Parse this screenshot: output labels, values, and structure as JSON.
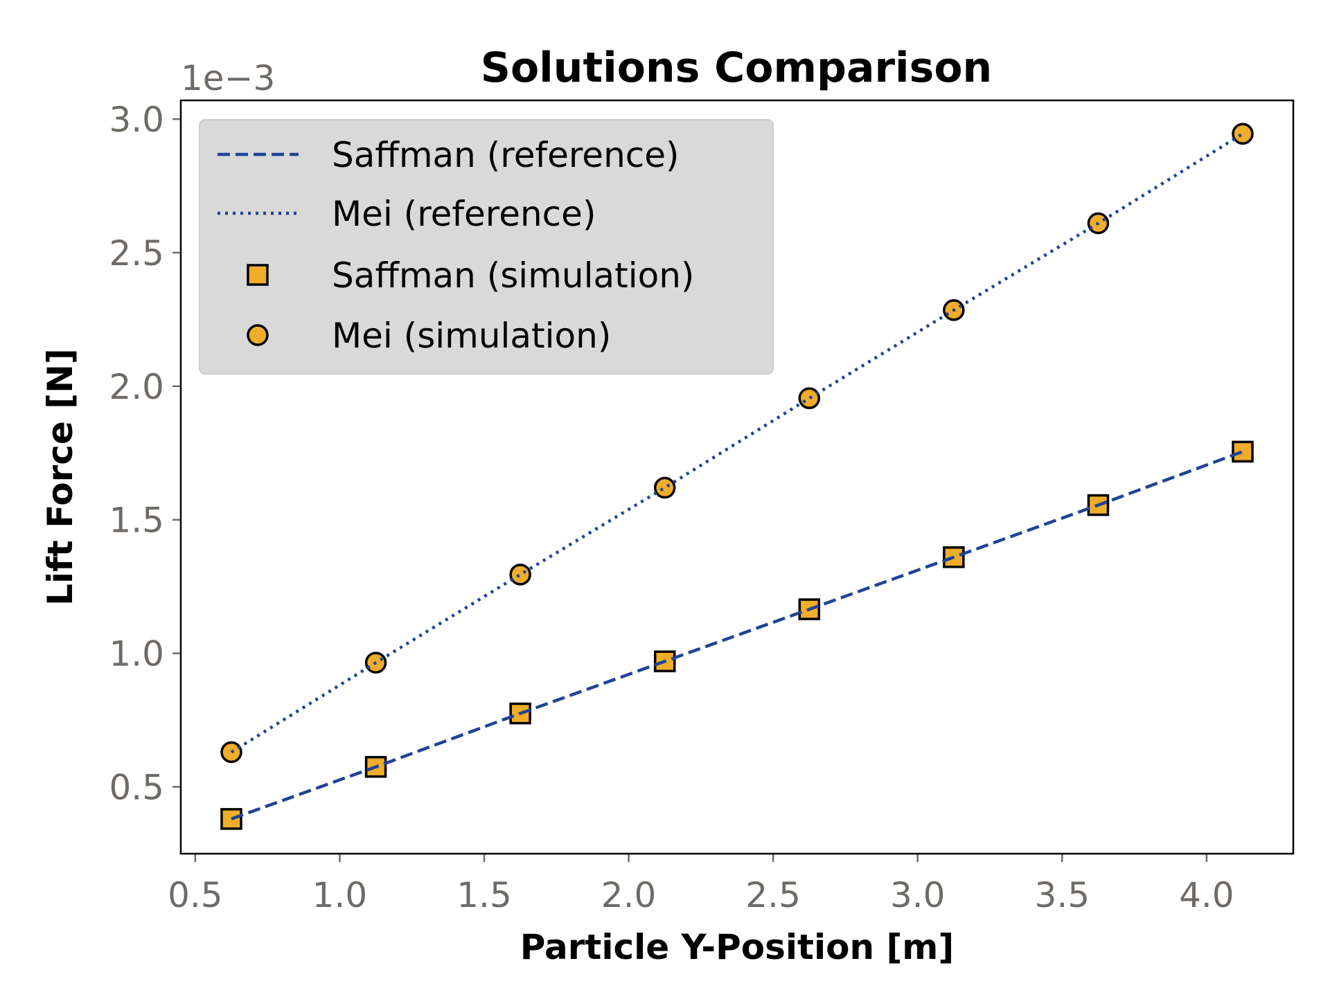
{
  "chart_data": {
    "type": "scatter",
    "title": "Solutions Comparison",
    "xlabel": "Particle Y-Position [m]",
    "ylabel": "Lift Force [N]",
    "y_offset_label": "1e−3",
    "xlim": [
      0.45,
      4.3
    ],
    "ylim": [
      0.25,
      3.07
    ],
    "x_ticks": [
      0.5,
      1.0,
      1.5,
      2.0,
      2.5,
      3.0,
      3.5,
      4.0
    ],
    "x_tick_labels": [
      "0.5",
      "1.0",
      "1.5",
      "2.0",
      "2.5",
      "3.0",
      "3.5",
      "4.0"
    ],
    "y_ticks": [
      0.5,
      1.0,
      1.5,
      2.0,
      2.5,
      3.0
    ],
    "y_tick_labels": [
      "0.5",
      "1.0",
      "1.5",
      "2.0",
      "2.5",
      "3.0"
    ],
    "grid": false,
    "legend_placement": "top-left",
    "x": [
      0.625,
      1.125,
      1.625,
      2.125,
      2.625,
      3.125,
      3.625,
      4.125
    ],
    "series": [
      {
        "name": "Saffman (reference)",
        "kind": "line",
        "style": "dashed",
        "color": "#1f4496",
        "values": [
          0.38,
          0.575,
          0.775,
          0.97,
          1.165,
          1.36,
          1.555,
          1.755
        ]
      },
      {
        "name": "Mei (reference)",
        "kind": "line",
        "style": "dotted",
        "color": "#1f4496",
        "values": [
          0.63,
          0.965,
          1.295,
          1.62,
          1.955,
          2.285,
          2.61,
          2.945
        ]
      },
      {
        "name": "Saffman (simulation)",
        "kind": "marker",
        "marker": "square",
        "color": "#f0ad2a",
        "values": [
          0.38,
          0.575,
          0.775,
          0.97,
          1.165,
          1.36,
          1.555,
          1.755
        ]
      },
      {
        "name": "Mei (simulation)",
        "kind": "marker",
        "marker": "circle",
        "color": "#f0ad2a",
        "values": [
          0.63,
          0.965,
          1.295,
          1.62,
          1.955,
          2.285,
          2.61,
          2.945
        ]
      }
    ],
    "note_units": "y values are in units of 1e-3 N as printed on the axis"
  }
}
